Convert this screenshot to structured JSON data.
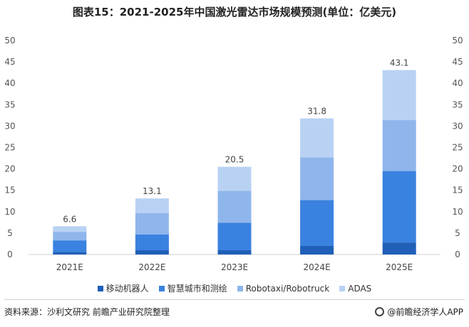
{
  "title": "图表15：2021-2025年中国激光雷达市场规模预测(单位：亿美元)",
  "chart_data": {
    "type": "bar",
    "stacked": true,
    "categories": [
      "2021E",
      "2022E",
      "2023E",
      "2024E",
      "2025E"
    ],
    "totals": [
      6.6,
      13.1,
      20.5,
      31.8,
      43.1
    ],
    "series": [
      {
        "name": "移动机器人",
        "color": "#1f5fb8",
        "values": [
          0.6,
          1.0,
          1.0,
          2.0,
          2.8
        ]
      },
      {
        "name": "智慧城市和测绘",
        "color": "#3a82df",
        "values": [
          2.7,
          3.7,
          6.4,
          10.7,
          16.7
        ]
      },
      {
        "name": "Robotaxi/Robotruck",
        "color": "#8fb6ec",
        "values": [
          2.0,
          5.0,
          7.5,
          10.0,
          11.9
        ]
      },
      {
        "name": "ADAS",
        "color": "#b9d2f4",
        "values": [
          1.3,
          3.4,
          5.6,
          9.1,
          11.7
        ]
      }
    ],
    "ylim": [
      0,
      50
    ],
    "yticks": [
      0,
      5,
      10,
      15,
      20,
      25,
      30,
      35,
      40,
      45,
      50
    ],
    "right_axis": true,
    "grid": false,
    "legend_position": "bottom"
  },
  "footer": {
    "source": "资料来源：沙利文研究 前瞻产业研究院整理",
    "brand": "@前瞻经济学人APP"
  }
}
